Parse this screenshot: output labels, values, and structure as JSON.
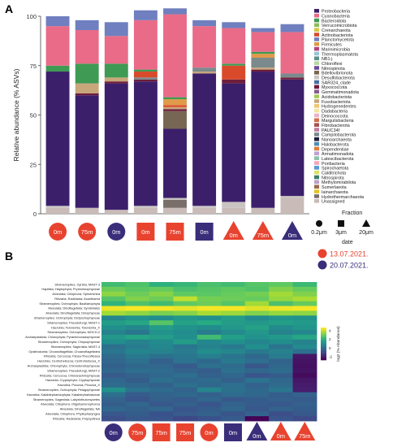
{
  "chart_data": [
    {
      "panel": "A",
      "type": "bar",
      "stacked": true,
      "ylabel": "Relative abundance (% ASVs)",
      "ylim": [
        0,
        100
      ],
      "yticks": [
        0,
        25,
        50,
        75,
        100
      ],
      "categories": [
        {
          "label": "0m",
          "shape": "circle",
          "date": "13.07.2021."
        },
        {
          "label": "75m",
          "shape": "circle",
          "date": "13.07.2021."
        },
        {
          "label": "0m",
          "shape": "circle",
          "date": "20.07.2021."
        },
        {
          "label": "0m",
          "shape": "square",
          "date": "13.07.2021."
        },
        {
          "label": "75m",
          "shape": "square",
          "date": "13.07.2021."
        },
        {
          "label": "0m",
          "shape": "square",
          "date": "20.07.2021."
        },
        {
          "label": "0m",
          "shape": "triangle",
          "date": "13.07.2021."
        },
        {
          "label": "75m",
          "shape": "triangle",
          "date": "13.07.2021."
        },
        {
          "label": "0m",
          "shape": "triangle",
          "date": "20.07.2021."
        }
      ],
      "segments": [
        {
          "name": "Unassigned",
          "color": "#c9bbb8",
          "values": [
            3,
            3,
            2,
            3,
            3,
            3,
            3,
            3,
            8
          ]
        },
        {
          "name": "Hydrothermarchaeota",
          "color": "#7a6e6a",
          "values": [
            0,
            0,
            0,
            0,
            4,
            0,
            0,
            0,
            0
          ]
        },
        {
          "name": "Desulfobacterota",
          "color": "#c9c4c2",
          "values": [
            1,
            0,
            0,
            1,
            1,
            1,
            3,
            0,
            1
          ]
        },
        {
          "name": "Proteobacteria",
          "color": "#3b1f6b",
          "values": [
            68,
            57,
            64,
            63,
            35,
            67,
            60,
            69,
            59
          ]
        },
        {
          "name": "Bdellovibrionota",
          "color": "#786654",
          "values": [
            0,
            0,
            0,
            0,
            9,
            0,
            0,
            0,
            0
          ]
        },
        {
          "name": "Myxococcota",
          "color": "#6f1d3a",
          "values": [
            0,
            1,
            1,
            1,
            1,
            0,
            2,
            1,
            1
          ]
        },
        {
          "name": "Fusobacteriota",
          "color": "#c8a77a",
          "values": [
            0,
            5,
            2,
            0,
            1,
            1,
            0,
            1,
            0
          ]
        },
        {
          "name": "Campilobacterota",
          "color": "#7b8a8c",
          "values": [
            0,
            0,
            0,
            1,
            0,
            2,
            0,
            5,
            2
          ]
        },
        {
          "name": "Actinobacteriota",
          "color": "#d94a2a",
          "values": [
            0,
            0,
            0,
            3,
            1,
            0,
            7,
            0,
            0
          ]
        },
        {
          "name": "Firmicutes",
          "color": "#e09a49",
          "values": [
            0,
            0,
            0,
            0,
            3,
            0,
            0,
            2,
            0
          ]
        },
        {
          "name": "Bacteroidota",
          "color": "#3f9a54",
          "values": [
            3,
            10,
            7,
            1,
            1,
            0,
            1,
            1,
            0
          ]
        },
        {
          "name": "Cyanobacteria",
          "color": "#e96b88",
          "values": [
            20,
            17,
            14,
            25,
            42,
            21,
            18,
            10,
            21
          ]
        },
        {
          "name": "Planctomycetota",
          "color": "#6f7fbf",
          "values": [
            5,
            5,
            7,
            5,
            3,
            3,
            3,
            2,
            4
          ]
        }
      ],
      "legend": {
        "position": "right",
        "entries": [
          {
            "name": "Proteobacteria",
            "color": "#3b1f6b"
          },
          {
            "name": "Cyanobacteria",
            "color": "#e96b88"
          },
          {
            "name": "Bacteroidota",
            "color": "#3f9a54"
          },
          {
            "name": "Verrucomicrobiota",
            "color": "#8bbf5a"
          },
          {
            "name": "Crenarchaeota",
            "color": "#d4c84a"
          },
          {
            "name": "Actinobacteriota",
            "color": "#d94a2a"
          },
          {
            "name": "Planctomycetota",
            "color": "#6f7fbf"
          },
          {
            "name": "Firmicutes",
            "color": "#e09a49"
          },
          {
            "name": "Marinimicrobia",
            "color": "#b2457a"
          },
          {
            "name": "Thermoplasmatota",
            "color": "#9bc4d6"
          },
          {
            "name": "NB1-j",
            "color": "#5c8f8a"
          },
          {
            "name": "Chloroflexi",
            "color": "#b9d8a0"
          },
          {
            "name": "Nitrospinota",
            "color": "#6c4c9c"
          },
          {
            "name": "Bdellovibrionota",
            "color": "#786654"
          },
          {
            "name": "Desulfobacterota",
            "color": "#c9c4c2"
          },
          {
            "name": "SAR324_clade",
            "color": "#4a6fa5"
          },
          {
            "name": "Myxococcota",
            "color": "#6f1d3a"
          },
          {
            "name": "Gemmatimonadota",
            "color": "#8a5a8f"
          },
          {
            "name": "Acidobacteriota",
            "color": "#a7c957"
          },
          {
            "name": "Fusobacteriota",
            "color": "#c8a77a"
          },
          {
            "name": "Hydrogenedentes",
            "color": "#f0c674"
          },
          {
            "name": "Dadabacteria",
            "color": "#f4e3a1"
          },
          {
            "name": "Deinococcota",
            "color": "#e8b4c8"
          },
          {
            "name": "Margulisbacteria",
            "color": "#d26d4e"
          },
          {
            "name": "Fibrobacterota",
            "color": "#a45454"
          },
          {
            "name": "PAUC34f",
            "color": "#c27b9e"
          },
          {
            "name": "Campilobacterota",
            "color": "#7b8a8c"
          },
          {
            "name": "Nanoarchaeota",
            "color": "#1f1f3a"
          },
          {
            "name": "Halobacterota",
            "color": "#4e8bb8"
          },
          {
            "name": "Dependentiae",
            "color": "#e07b39"
          },
          {
            "name": "Armatimonadota",
            "color": "#bfa2d6"
          },
          {
            "name": "Latescibacterota",
            "color": "#8fc1a9"
          },
          {
            "name": "Poribacteria",
            "color": "#f2a7b8"
          },
          {
            "name": "Spirochaetota",
            "color": "#5a9bd4"
          },
          {
            "name": "Calditrichota",
            "color": "#d9e36a"
          },
          {
            "name": "Nitrospirota",
            "color": "#3e7d6b"
          },
          {
            "name": "Methylomirabilota",
            "color": "#b9a0c9"
          },
          {
            "name": "Sumerlaeota",
            "color": "#9c6b4e"
          },
          {
            "name": "Iainarchaeota",
            "color": "#e6c229"
          },
          {
            "name": "Hydrothermarchaeota",
            "color": "#7a6e6a"
          },
          {
            "name": "Unassigned",
            "color": "#c9bbb8"
          }
        ]
      },
      "fraction_legend": {
        "title": "Fraction",
        "items": [
          {
            "shape": "circle",
            "label": "0.2μm"
          },
          {
            "shape": "square",
            "label": "3μm"
          },
          {
            "shape": "triangle",
            "label": "20μm"
          }
        ]
      },
      "date_legend": {
        "title": "date",
        "items": [
          {
            "label": "13.07.2021.",
            "color": "#e8432f"
          },
          {
            "label": "20.07.2021.",
            "color": "#3a2d7a"
          }
        ]
      }
    },
    {
      "panel": "B",
      "type": "heatmap",
      "colorbar_label": "log2 (% Abundance)",
      "colorbar_ticks": [
        "4",
        "2",
        "0",
        "-2"
      ],
      "value_range": [
        -4,
        5
      ],
      "rows": [
        "Stramenopiles; Gyrista; MAST-3",
        "Haptista; Haptophyta; Prymnesiophyceae",
        "Alveolata; Ciliophora; Spirotrichea",
        "Rhizaria; Radiolaria; Acantharea",
        "Stramenopiles; Ochrophyta; Bacillariophyta",
        "Alveolata; Dinoflagellata; Syndiniales",
        "Alveolata; Dinoflagellata; Dinophyceae",
        "Stramenopiles; Ochrophyta; Dictyochophyceae",
        "Stramenopiles; Pseudofungi; MAST-1",
        "Hacrobia; Telonemia; Telonemia_X",
        "Stramenopiles; Ochrophyta; MOCH-2",
        "Archaeplastida; Chlorophyta; Pyramimonadophyceae",
        "Stramenopiles; Ochrophyta; Chrysophyceae",
        "Stramenopiles; Sagenista; MAST-4",
        "Opisthokonta; Choanoflagellida; Choanoflagellatea",
        "Rhizaria; Cercozoa; Filosa-Thecofilosea",
        "Hacrobia; Centroheliozoa; Centroheliozoa_X",
        "Archaeplastida; Chlorophyta; Chlorodendrophyceae",
        "Stramenopiles; Pseudofungi; MAST-2",
        "Rhizaria; Cercozoa; Chlorarachniophyceae",
        "Hacrobia; Cryptophyta; Cryptophyceae",
        "Hacrobia; Picozoa; Picozoa_X",
        "Stramenopiles; Ochrophyta; Pelagophyceae",
        "Hacrobia; Katablepharidophyta; Katablepharidaceae",
        "Stramenopiles; Sagenista; Labyrinthulomycetes",
        "Alveolata; Ciliophora; Oligohymenophorea",
        "Alveolata; Dinoflagellata; NA",
        "Alveolata; Ciliophora; Phyllopharyngea",
        "Rhizaria; Radiolaria; Polycystinea"
      ],
      "columns": [
        {
          "label": "0m",
          "shape": "circle",
          "date": "20.07.2021."
        },
        {
          "label": "75m",
          "shape": "circle",
          "date": "13.07.2021."
        },
        {
          "label": "75m",
          "shape": "square",
          "date": "13.07.2021."
        },
        {
          "label": "75m",
          "shape": "square",
          "date": "13.07.2021."
        },
        {
          "label": "0m",
          "shape": "circle",
          "date": "13.07.2021."
        },
        {
          "label": "0m",
          "shape": "square",
          "date": "20.07.2021."
        },
        {
          "label": "0m",
          "shape": "triangle",
          "date": "20.07.2021."
        },
        {
          "label": "0m",
          "shape": "triangle",
          "date": "13.07.2021."
        },
        {
          "label": "75m",
          "shape": "triangle",
          "date": "13.07.2021."
        }
      ],
      "values": [
        [
          2.2,
          2.5,
          1.8,
          2.0,
          2.4,
          2.2,
          2.6,
          2.8,
          2.1
        ],
        [
          3.0,
          2.7,
          2.9,
          2.4,
          2.6,
          2.8,
          2.5,
          3.3,
          2.9
        ],
        [
          3.5,
          3.0,
          3.4,
          2.8,
          2.7,
          2.9,
          3.1,
          3.8,
          3.3
        ],
        [
          2.6,
          3.3,
          3.0,
          4.2,
          3.1,
          3.0,
          2.9,
          3.6,
          3.9
        ],
        [
          1.9,
          2.5,
          2.2,
          2.8,
          3.0,
          2.6,
          3.8,
          2.4,
          2.9
        ],
        [
          4.8,
          5.0,
          4.9,
          4.7,
          4.9,
          4.9,
          4.6,
          4.8,
          4.9
        ],
        [
          3.8,
          3.5,
          3.2,
          3.4,
          3.9,
          3.7,
          3.3,
          3.6,
          3.5
        ],
        [
          0.2,
          0.6,
          0.4,
          0.8,
          0.5,
          1.0,
          0.3,
          0.7,
          0.6
        ],
        [
          1.0,
          1.4,
          2.6,
          1.2,
          1.6,
          1.0,
          0.8,
          1.1,
          0.9
        ],
        [
          0.5,
          0.2,
          1.0,
          0.6,
          0.4,
          0.8,
          1.2,
          0.3,
          0.7
        ],
        [
          0.0,
          -0.4,
          0.6,
          0.4,
          -0.2,
          0.3,
          0.8,
          0.0,
          0.2
        ],
        [
          0.8,
          1.3,
          1.0,
          0.5,
          2.2,
          1.1,
          0.6,
          0.9,
          1.4
        ],
        [
          0.4,
          0.0,
          0.3,
          1.0,
          0.2,
          0.5,
          0.1,
          0.4,
          0.0
        ],
        [
          -0.6,
          -0.2,
          0.2,
          -0.4,
          0.0,
          -0.3,
          0.5,
          -0.5,
          0.3
        ],
        [
          -0.4,
          0.1,
          0.0,
          -0.2,
          0.4,
          0.2,
          -0.3,
          0.0,
          -0.6
        ],
        [
          -0.8,
          -0.3,
          -0.6,
          -0.4,
          -0.1,
          -0.5,
          -0.9,
          -0.2,
          -3.4
        ],
        [
          -1.0,
          -0.6,
          -1.2,
          -0.5,
          -0.9,
          -0.3,
          -0.7,
          -1.1,
          -3.5
        ],
        [
          -1.2,
          -0.9,
          -1.0,
          -1.4,
          -0.6,
          -0.8,
          -1.5,
          -0.9,
          -3.6
        ],
        [
          -1.0,
          -0.7,
          -0.8,
          -1.1,
          -1.3,
          -0.6,
          -1.0,
          -0.8,
          -3.5
        ],
        [
          -1.4,
          -1.1,
          -0.9,
          -0.7,
          -1.2,
          -1.0,
          -1.6,
          -1.3,
          -3.7
        ],
        [
          -0.9,
          -1.3,
          -0.6,
          -1.0,
          -0.8,
          -1.2,
          -0.5,
          -1.0,
          -3.4
        ],
        [
          -0.8,
          -1.0,
          -1.2,
          -0.6,
          -0.9,
          -0.7,
          -1.1,
          -0.8,
          -3.3
        ],
        [
          0.6,
          -0.5,
          -0.8,
          -1.1,
          0.1,
          -0.6,
          -0.9,
          -0.4,
          -3.2
        ],
        [
          -0.6,
          -1.4,
          -1.1,
          -0.9,
          -1.2,
          -0.8,
          -1.0,
          -1.3,
          -1.1
        ],
        [
          -1.1,
          -1.6,
          -1.2,
          -1.4,
          -1.0,
          -1.5,
          -1.3,
          -1.2,
          -1.4
        ],
        [
          -1.3,
          -1.0,
          -1.5,
          -1.2,
          -1.6,
          -1.1,
          -1.4,
          -1.5,
          -1.2
        ],
        [
          -0.9,
          -1.2,
          -1.0,
          -1.6,
          -1.3,
          -1.0,
          -1.5,
          -1.1,
          -1.3
        ],
        [
          -1.5,
          -1.3,
          -1.7,
          -1.4,
          -1.2,
          -1.6,
          -1.1,
          -1.8,
          -1.5
        ],
        [
          -1.8,
          -1.5,
          -1.6,
          -2.0,
          -1.7,
          -1.4,
          -3.9,
          -1.6,
          -1.9
        ]
      ]
    }
  ]
}
